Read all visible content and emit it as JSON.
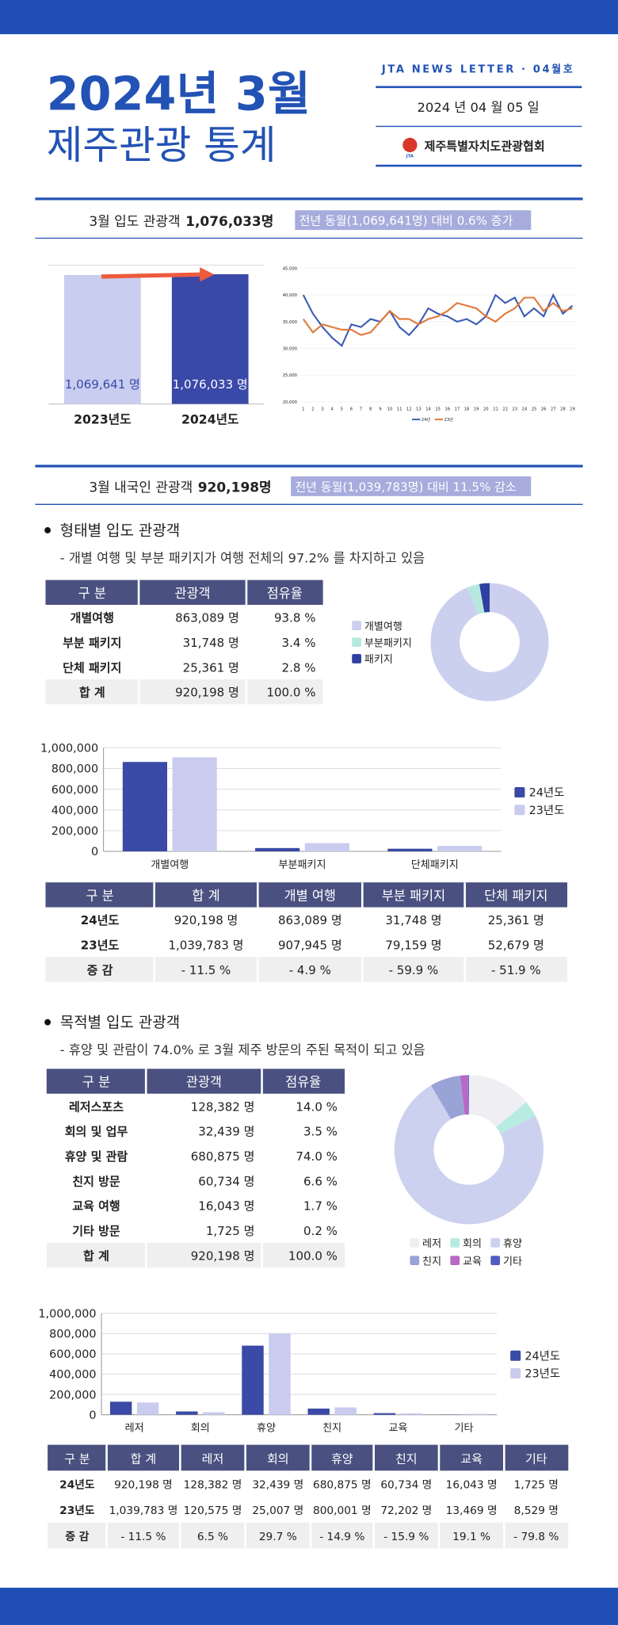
{
  "header": {
    "title_line1": "2024년 3월",
    "title_line2": "제주관광 통계",
    "newsletter": "JTA NEWS LETTER · 04월호",
    "date": "2024 년  04 월  05 일",
    "logo": "JTA",
    "org": "제주특별자치도관광협회"
  },
  "summary1": {
    "label": "3월 입도 관광객",
    "value": "1,076,033명",
    "note": "전년 동월(1,069,641명) 대비 0.6% 증가"
  },
  "compare_chart": {
    "type": "bar",
    "categories": [
      "2023년도",
      "2024년도"
    ],
    "values": [
      1069641,
      1076033
    ],
    "value_labels": [
      "1,069,641 명",
      "1,076,033 명"
    ],
    "colors": [
      "#c9cdef",
      "#3a48a8"
    ],
    "ylim": [
      0,
      1100000
    ]
  },
  "daily_chart": {
    "type": "line",
    "x": [
      1,
      2,
      3,
      4,
      5,
      6,
      7,
      8,
      9,
      10,
      11,
      12,
      13,
      14,
      15,
      16,
      17,
      18,
      19,
      20,
      21,
      22,
      23,
      24,
      25,
      26,
      27,
      28,
      29
    ],
    "xlim": [
      1,
      29
    ],
    "ylim": [
      20000,
      45000
    ],
    "yticks": [
      {
        "value": 45000,
        "label": "45,000"
      },
      {
        "value": 40000,
        "label": "40,000"
      },
      {
        "value": 35000,
        "label": "35,000"
      },
      {
        "value": 30000,
        "label": "30,000"
      },
      {
        "value": 25000,
        "label": "25,000"
      },
      {
        "value": 20000,
        "label": "20,000"
      }
    ],
    "series": [
      {
        "name": "24년",
        "color": "#3b5bb5",
        "values": [
          40000,
          36500,
          34000,
          32000,
          30500,
          34500,
          34000,
          35500,
          35000,
          37000,
          34000,
          32500,
          34500,
          37500,
          36500,
          36000,
          35000,
          35500,
          34500,
          36000,
          40000,
          38500,
          39500,
          36000,
          37500,
          36000,
          40000,
          36500,
          38000
        ]
      },
      {
        "name": "23년",
        "color": "#e0783a",
        "values": [
          35500,
          33000,
          34500,
          34000,
          33500,
          33500,
          32500,
          33000,
          35000,
          37000,
          35500,
          35500,
          34500,
          35500,
          36000,
          37000,
          38500,
          38000,
          37500,
          36000,
          35000,
          36500,
          37500,
          39500,
          39500,
          37000,
          38500,
          37000,
          37500
        ]
      }
    ]
  },
  "summary2": {
    "label": "3월 내국인 관광객",
    "value": "920,198명",
    "note": "전년 동월(1,039,783명) 대비 11.5% 감소"
  },
  "section1": {
    "heading": "형태별 입도 관광객",
    "desc": "- 개별 여행 및 부분 패키지가 여행 전체의 97.2% 를 차지하고 있음"
  },
  "table1": {
    "headers": [
      "구 분",
      "관광객",
      "점유율"
    ],
    "rows": [
      [
        "개별여행",
        "863,089 명",
        "93.8 %"
      ],
      [
        "부분 패키지",
        "31,748 명",
        "3.4 %"
      ],
      [
        "단체 패키지",
        "25,361 명",
        "2.8 %"
      ],
      [
        "합 계",
        "920,198 명",
        "100.0 %"
      ]
    ]
  },
  "donut1": {
    "type": "pie",
    "categories": [
      "개별여행",
      "부분패키지",
      "패키지"
    ],
    "values": [
      93.8,
      3.4,
      2.8
    ],
    "colors": [
      "#ccd0ef",
      "#b6e8e0",
      "#2f3f9f"
    ]
  },
  "bar1": {
    "type": "bar",
    "categories": [
      "개별여행",
      "부분패키지",
      "단체패키지"
    ],
    "ylim": [
      0,
      1000000
    ],
    "yticks": [
      0,
      {
        "value": 200000,
        "label": "200,000"
      },
      {
        "value": 400000,
        "label": "400,000"
      },
      {
        "value": 600000,
        "label": "600,000"
      },
      {
        "value": 800000,
        "label": "800,000"
      },
      {
        "value": 1000000,
        "label": "1,000,000"
      }
    ],
    "series": [
      {
        "name": "24년도",
        "color": "#3b4aa6",
        "values": [
          863089,
          31748,
          25361
        ]
      },
      {
        "name": "23년도",
        "color": "#c9ccee",
        "values": [
          907945,
          79159,
          52679
        ]
      }
    ]
  },
  "table2": {
    "headers": [
      "구 분",
      "합 계",
      "개별 여행",
      "부분 패키지",
      "단체 패키지"
    ],
    "rows": [
      [
        "24년도",
        "920,198 명",
        "863,089 명",
        "31,748 명",
        "25,361 명"
      ],
      [
        "23년도",
        "1,039,783 명",
        "907,945 명",
        "79,159 명",
        "52,679 명"
      ],
      [
        "증 감",
        "- 11.5 %",
        "- 4.9 %",
        "- 59.9 %",
        "- 51.9 %"
      ]
    ]
  },
  "section2": {
    "heading": "목적별 입도 관광객",
    "desc": "- 휴양 및 관람이 74.0% 로 3월 제주 방문의 주된 목적이 되고 있음"
  },
  "table3": {
    "headers": [
      "구 분",
      "관광객",
      "점유율"
    ],
    "rows": [
      [
        "레저스포츠",
        "128,382 명",
        "14.0 %"
      ],
      [
        "회의 및 업무",
        "32,439 명",
        "3.5 %"
      ],
      [
        "휴양 및 관람",
        "680,875 명",
        "74.0 %"
      ],
      [
        "친지 방문",
        "60,734 명",
        "6.6 %"
      ],
      [
        "교육 여행",
        "16,043 명",
        "1.7 %"
      ],
      [
        "기타 방문",
        "1,725 명",
        "0.2 %"
      ],
      [
        "합 계",
        "920,198 명",
        "100.0 %"
      ]
    ]
  },
  "donut2": {
    "type": "pie",
    "categories": [
      "레저",
      "회의",
      "휴양",
      "친지",
      "교육",
      "기타"
    ],
    "values": [
      14.0,
      3.5,
      74.0,
      6.6,
      1.7,
      0.2
    ],
    "colors": [
      "#efeff3",
      "#b8ebe2",
      "#cdd1f0",
      "#9aa3d6",
      "#b968c8",
      "#4f5cc0"
    ]
  },
  "bar2": {
    "type": "bar",
    "categories": [
      "레저",
      "회의",
      "휴양",
      "친지",
      "교육",
      "기타"
    ],
    "ylim": [
      0,
      1000000
    ],
    "yticks": [
      0,
      {
        "value": 200000,
        "label": "200,000"
      },
      {
        "value": 400000,
        "label": "400,000"
      },
      {
        "value": 600000,
        "label": "600,000"
      },
      {
        "value": 800000,
        "label": "800,000"
      },
      {
        "value": 1000000,
        "label": "1,000,000"
      }
    ],
    "series": [
      {
        "name": "24년도",
        "color": "#3b4aa6",
        "values": [
          128382,
          32439,
          680875,
          60734,
          16043,
          1725
        ]
      },
      {
        "name": "23년도",
        "color": "#c9ccee",
        "values": [
          120575,
          25007,
          800001,
          72202,
          13469,
          8529
        ]
      }
    ]
  },
  "table4": {
    "headers": [
      "구 분",
      "합 계",
      "레저",
      "회의",
      "휴양",
      "친지",
      "교육",
      "기타"
    ],
    "rows": [
      [
        "24년도",
        "920,198 명",
        "128,382 명",
        "32,439 명",
        "680,875 명",
        "60,734 명",
        "16,043 명",
        "1,725 명"
      ],
      [
        "23년도",
        "1,039,783 명",
        "120,575 명",
        "25,007 명",
        "800,001 명",
        "72,202 명",
        "13,469 명",
        "8,529 명"
      ],
      [
        "증 감",
        "- 11.5 %",
        "6.5 %",
        "29.7 %",
        "- 14.9 %",
        "- 15.9 %",
        "19.1 %",
        "- 79.8 %"
      ]
    ]
  }
}
